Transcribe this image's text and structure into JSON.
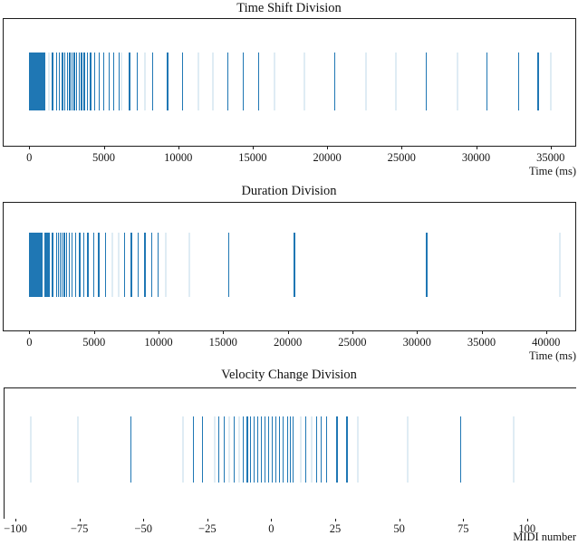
{
  "figure_title": "",
  "accent_color": "#1f77b4",
  "spine_color": "#1c1c1c",
  "chart_data": [
    {
      "type": "scatter",
      "mark": "event-rug-vertical-lines",
      "title": "Time Shift Division",
      "xlabel": "Time (ms)",
      "ylabel": "",
      "grid": false,
      "legend": null,
      "xlim": [
        -1780,
        36720
      ],
      "xticks": [
        {
          "v": 0,
          "label": "0"
        },
        {
          "v": 5000,
          "label": "5000"
        },
        {
          "v": 10000,
          "label": "10000"
        },
        {
          "v": 15000,
          "label": "15000"
        },
        {
          "v": 20000,
          "label": "20000"
        },
        {
          "v": 25000,
          "label": "25000"
        },
        {
          "v": 30000,
          "label": "30000"
        },
        {
          "v": 35000,
          "label": "35000"
        }
      ],
      "bands": [
        [
          0,
          1080
        ]
      ],
      "lines_strong": [
        1520,
        1810,
        1990,
        2190,
        2340,
        2520,
        2680,
        2820,
        2980,
        3140,
        3310,
        3470,
        3650,
        3860,
        4080,
        4360,
        4650,
        4970,
        5320,
        5620,
        5990,
        6690,
        7200,
        8240,
        9250,
        10260,
        13310,
        14320,
        15370,
        20480,
        26620,
        30700,
        32810,
        34120
      ],
      "lines_faint": [
        1280,
        6140,
        7720,
        11280,
        12290,
        16380,
        18430,
        22530,
        24580,
        28670,
        34940
      ]
    },
    {
      "type": "scatter",
      "mark": "event-rug-vertical-lines",
      "title": "Duration Division",
      "xlabel": "Time (ms)",
      "ylabel": "",
      "grid": false,
      "legend": null,
      "xlim": [
        -2060,
        42330
      ],
      "xticks": [
        {
          "v": 0,
          "label": "0"
        },
        {
          "v": 5000,
          "label": "5000"
        },
        {
          "v": 10000,
          "label": "10000"
        },
        {
          "v": 15000,
          "label": "15000"
        },
        {
          "v": 20000,
          "label": "20000"
        },
        {
          "v": 25000,
          "label": "25000"
        },
        {
          "v": 30000,
          "label": "30000"
        },
        {
          "v": 35000,
          "label": "35000"
        },
        {
          "v": 40000,
          "label": "40000"
        }
      ],
      "bands": [
        [
          0,
          1010
        ],
        [
          1170,
          1590
        ],
        [
          1750,
          1890
        ]
      ],
      "lines_strong": [
        2060,
        2220,
        2360,
        2500,
        2660,
        2830,
        3040,
        3270,
        3550,
        3860,
        4160,
        4490,
        4930,
        5330,
        5850,
        7320,
        7850,
        8370,
        8900,
        9420,
        9930,
        15380,
        20480,
        30720
      ],
      "lines_faint": [
        6380,
        6850,
        10470,
        12290,
        40960
      ]
    },
    {
      "type": "scatter",
      "mark": "event-rug-vertical-lines",
      "title": "Velocity Change Division",
      "xlabel": "MIDI number",
      "ylabel": "",
      "grid": false,
      "legend": null,
      "xlim": [
        -104.6,
        119.2
      ],
      "xticks": [
        {
          "v": -100,
          "label": "−100"
        },
        {
          "v": -75,
          "label": "−75"
        },
        {
          "v": -50,
          "label": "−50"
        },
        {
          "v": -25,
          "label": "−25"
        },
        {
          "v": 0,
          "label": "0"
        },
        {
          "v": 25,
          "label": "25"
        },
        {
          "v": 50,
          "label": "50"
        },
        {
          "v": 75,
          "label": "75"
        },
        {
          "v": 100,
          "label": "100"
        }
      ],
      "bands": [],
      "lines_strong": [
        -55,
        -30.6,
        -27,
        -20.7,
        -18.5,
        -14.6,
        -11.1,
        -9.6,
        -8.2,
        -6.8,
        -5.5,
        -4.1,
        -2.7,
        -1.3,
        0.1,
        1.5,
        2.9,
        4.3,
        6.3,
        7.3,
        8.4,
        13.4,
        17.6,
        19.4,
        21.5,
        25.5,
        29.4,
        73.7
      ],
      "lines_faint": [
        -94.4,
        -76,
        -34.7,
        -22.5,
        -16.7,
        -12.8,
        11.2,
        15.5,
        33.6,
        53,
        94.5
      ]
    }
  ]
}
